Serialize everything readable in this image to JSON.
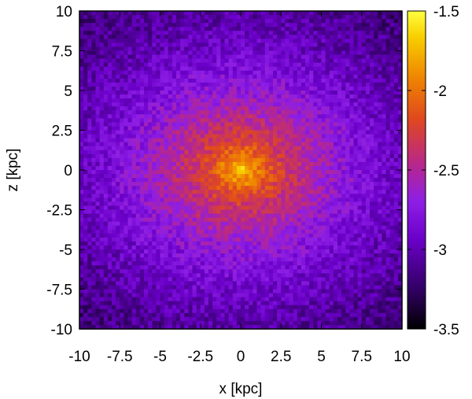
{
  "chart_data": {
    "type": "heatmap",
    "title": "",
    "xlabel": "x [kpc]",
    "ylabel": "z [kpc]",
    "xlim": [
      -10,
      10
    ],
    "ylim": [
      -10,
      10
    ],
    "x_ticks": [
      "-10",
      "-7.5",
      "-5",
      "-2.5",
      "0",
      "2.5",
      "5",
      "7.5",
      "10"
    ],
    "y_ticks": [
      "10",
      "7.5",
      "5",
      "2.5",
      "0",
      "-2.5",
      "-5",
      "-7.5",
      "-10"
    ],
    "colorbar": {
      "range": [
        -3.5,
        -1.5
      ],
      "ticks": [
        "-1.5",
        "-2",
        "-2.5",
        "-3",
        "-3.5"
      ],
      "colormap": [
        "#000000",
        "#300060",
        "#6a00c8",
        "#8d1ee6",
        "#b8278a",
        "#e0481e",
        "#f08a00",
        "#f8d000",
        "#ffff40"
      ]
    },
    "peak": {
      "x": 0,
      "z": 0,
      "value": -1.6
    },
    "grid": false,
    "legend": "colorbar-right"
  }
}
